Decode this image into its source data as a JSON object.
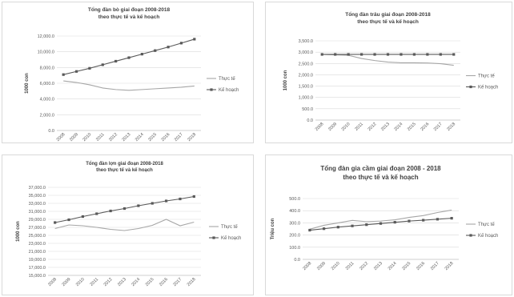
{
  "charts": [
    {
      "title_lines": [
        "Tổng đàn bò giai đoạn 2008-2018",
        "theo thực tế và kế hoạch"
      ],
      "ylabel": "1000 con",
      "ytick_labels": [
        "0.0",
        "2,000.0",
        "4,000.0",
        "6,000.0",
        "8,000.0",
        "10,000.0",
        "12,000.0"
      ],
      "xtick_labels": [
        "2008",
        "2009",
        "2010",
        "2011",
        "2012",
        "2013",
        "2014",
        "2015",
        "2016",
        "2017",
        "2018"
      ],
      "legend": [
        "Thực tế",
        "Kế hoạch"
      ]
    },
    {
      "title_lines": [
        "Tổng đàn trâu giai đoạn 2008-2018",
        "theo thực tế và kế hoạch"
      ],
      "ylabel": "1000 con",
      "ytick_labels": [
        "0.0",
        "500.0",
        "1,000.0",
        "1,500.0",
        "2,000.0",
        "2,500.0",
        "3,000.0",
        "3,500.0"
      ],
      "xtick_labels": [
        "2008",
        "2009",
        "2010",
        "2011",
        "2012",
        "2013",
        "2014",
        "2015",
        "2016",
        "2017",
        "2018"
      ],
      "legend": [
        "Thực tế",
        "Kế hoạch"
      ]
    },
    {
      "title_lines": [
        "Tổng đàn lợn giai đoạn 2008-2018",
        "theo thực tế và kế hoạch"
      ],
      "ylabel": "1000 con",
      "ytick_labels": [
        "15,000.0",
        "17,000.0",
        "19,000.0",
        "21,000.0",
        "23,000.0",
        "25,000.0",
        "27,000.0",
        "29,000.0",
        "31,000.0",
        "33,000.0",
        "35,000.0",
        "37,000.0"
      ],
      "xtick_labels": [
        "2008",
        "2009",
        "2010",
        "2011",
        "2012",
        "2013",
        "2014",
        "2015",
        "2016",
        "2017",
        "2018"
      ],
      "legend": [
        "Thực tế",
        "Kế hoạch"
      ]
    },
    {
      "title_lines": [
        "Tổng đàn gia cầm giai đoạn 2008 - 2018",
        "theo thực tế và kế hoạch"
      ],
      "ylabel": "Triệu con",
      "ytick_labels": [
        "0.0",
        "100.0",
        "200.0",
        "300.0",
        "400.0",
        "500.0"
      ],
      "xtick_labels": [
        "2008",
        "2009",
        "2010",
        "2011",
        "2012",
        "2013",
        "2014",
        "2015",
        "2016",
        "2017",
        "2018"
      ],
      "legend": [
        "Thực tế",
        "Kế hoạch"
      ]
    }
  ],
  "chart_data": [
    {
      "type": "line",
      "x": [
        2008,
        2009,
        2010,
        2011,
        2012,
        2013,
        2014,
        2015,
        2016,
        2017,
        2018
      ],
      "ylim": [
        0,
        12000
      ],
      "grid": true,
      "legend_position": "right",
      "series": [
        {
          "name": "Thực tế",
          "color": "#a6a6a6",
          "marker": "none",
          "values": [
            6300,
            6100,
            5800,
            5400,
            5200,
            5100,
            5200,
            5300,
            5400,
            5500,
            5650
          ]
        },
        {
          "name": "Kế hoạch",
          "color": "#595959",
          "marker": "square",
          "values": [
            7100,
            7500,
            7900,
            8350,
            8800,
            9250,
            9700,
            10150,
            10600,
            11100,
            11600
          ]
        }
      ]
    },
    {
      "type": "line",
      "x": [
        2008,
        2009,
        2010,
        2011,
        2012,
        2013,
        2014,
        2015,
        2016,
        2017,
        2018
      ],
      "ylim": [
        0,
        3500
      ],
      "grid": true,
      "legend_position": "right",
      "series": [
        {
          "name": "Thực tế",
          "color": "#a6a6a6",
          "marker": "none",
          "values": [
            2900,
            2880,
            2860,
            2720,
            2630,
            2560,
            2530,
            2530,
            2520,
            2490,
            2420
          ]
        },
        {
          "name": "Kế hoạch",
          "color": "#595959",
          "marker": "square",
          "values": [
            2900,
            2900,
            2900,
            2900,
            2900,
            2900,
            2900,
            2900,
            2900,
            2900,
            2900
          ]
        }
      ]
    },
    {
      "type": "line",
      "x": [
        2008,
        2009,
        2010,
        2011,
        2012,
        2013,
        2014,
        2015,
        2016,
        2017,
        2018
      ],
      "ylim": [
        15000,
        37000
      ],
      "grid": true,
      "legend_position": "right",
      "series": [
        {
          "name": "Thực tế",
          "color": "#a6a6a6",
          "marker": "none",
          "values": [
            26700,
            27600,
            27400,
            27000,
            26500,
            26200,
            26700,
            27500,
            29000,
            27400,
            28300
          ]
        },
        {
          "name": "Kế hoạch",
          "color": "#595959",
          "marker": "square",
          "values": [
            28200,
            28900,
            29700,
            30400,
            31100,
            31700,
            32400,
            33000,
            33600,
            34100,
            34700
          ]
        }
      ]
    },
    {
      "type": "line",
      "x": [
        2008,
        2009,
        2010,
        2011,
        2012,
        2013,
        2014,
        2015,
        2016,
        2017,
        2018
      ],
      "ylim": [
        0,
        500
      ],
      "grid": true,
      "legend_position": "right",
      "series": [
        {
          "name": "Thực tế",
          "color": "#a6a6a6",
          "marker": "none",
          "values": [
            248,
            280,
            300,
            320,
            310,
            315,
            325,
            345,
            360,
            385,
            405
          ]
        },
        {
          "name": "Kế hoạch",
          "color": "#595959",
          "marker": "square",
          "values": [
            240,
            252,
            265,
            275,
            285,
            295,
            305,
            315,
            322,
            330,
            338
          ]
        }
      ]
    }
  ]
}
